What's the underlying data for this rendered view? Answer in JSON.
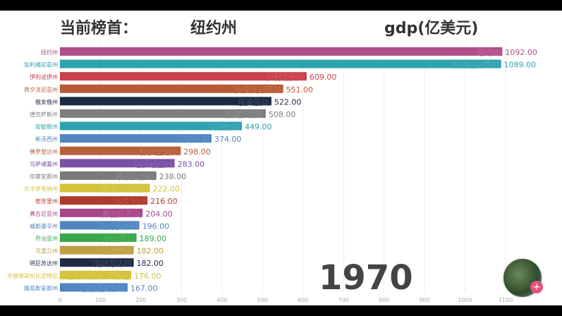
{
  "header": {
    "leader_label": "当前榜首：",
    "leader_value": "纽约州",
    "unit_label": "gdp(亿美元)"
  },
  "year": "1970",
  "chart_data": {
    "type": "bar",
    "orientation": "horizontal",
    "categories": [
      "纽约州",
      "加利福尼亚州",
      "伊利诺伊州",
      "宾夕法尼亚州",
      "俄亥俄州",
      "德克萨斯州",
      "密歇根州",
      "新泽西州",
      "佛罗里达州",
      "马萨诸塞州",
      "印第安那州",
      "北卡罗来纳州",
      "密苏里州",
      "弗吉尼亚州",
      "威斯康辛州",
      "乔治亚州",
      "马里兰州",
      "明尼苏达州",
      "华盛顿哥伦比亚特区",
      "路易斯安那州"
    ],
    "values": [
      1092,
      1089,
      609,
      551,
      522,
      508,
      449,
      374,
      298,
      283,
      238,
      222,
      216,
      204,
      196,
      189,
      182,
      182,
      176,
      167
    ],
    "value_labels": [
      "1092.00",
      "1089.00",
      "609.00",
      "551.00",
      "522.00",
      "508.00",
      "449.00",
      "374.00",
      "298.00",
      "283.00",
      "238.00",
      "222.00",
      "216.00",
      "204.00",
      "196.00",
      "189.00",
      "182.00",
      "182.00",
      "176.00",
      "167.00"
    ],
    "colors": [
      "#b0508a",
      "#2ea3b0",
      "#c9414b",
      "#b85a35",
      "#1c2a44",
      "#7f7f7f",
      "#2ea3b0",
      "#4f86c0",
      "#b8603a",
      "#7a4fa8",
      "#7a7a7a",
      "#d4c23a",
      "#b03a2a",
      "#a8458a",
      "#4f86c0",
      "#3aa84a",
      "#c0a040",
      "#1c2a44",
      "#d4c23a",
      "#4f86c0"
    ],
    "xlim": [
      0,
      1100
    ],
    "xticks": [
      "0",
      "100",
      "200",
      "300",
      "400",
      "500",
      "600",
      "700",
      "800",
      "900",
      "1000",
      "1100"
    ],
    "grid": true
  }
}
